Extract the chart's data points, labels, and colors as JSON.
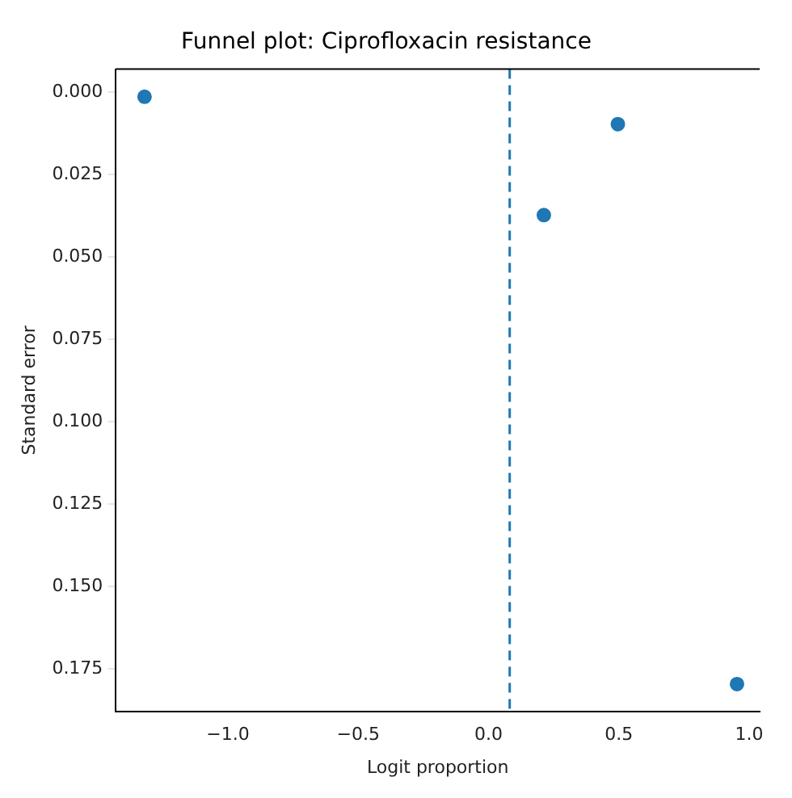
{
  "chart_data": {
    "type": "scatter",
    "title": "Funnel plot: Ciprofloxacin resistance",
    "xlabel": "Logit proportion",
    "ylabel": "Standard error",
    "series": [
      {
        "color": "#1f77b4",
        "x": [
          -1.32,
          0.496,
          0.212,
          0.953
        ],
        "values": [
          0.0014,
          0.0097,
          0.0373,
          0.1796
        ]
      }
    ],
    "xlim": [
      -1.43,
      1.04
    ],
    "xticks": [
      {
        "value": -1,
        "label": "−1.0"
      },
      {
        "value": -0.5,
        "label": "−0.5"
      },
      {
        "value": 0,
        "label": "0.0"
      },
      {
        "value": 0.5,
        "label": "0.5"
      },
      {
        "value": 1,
        "label": "1.0"
      }
    ],
    "ylim": [
      0.188,
      -0.007
    ],
    "yticks": [
      {
        "value": 0,
        "label": "0.000"
      },
      {
        "value": 0.025,
        "label": "0.025"
      },
      {
        "value": 0.05,
        "label": "0.050"
      },
      {
        "value": 0.075,
        "label": "0.075"
      },
      {
        "value": 0.1,
        "label": "0.100"
      },
      {
        "value": 0.125,
        "label": "0.125"
      },
      {
        "value": 0.15,
        "label": "0.150"
      },
      {
        "value": 0.175,
        "label": "0.175"
      }
    ],
    "ref_lines": [
      {
        "axis": "x",
        "value": 0.081,
        "color": "#1f77b4",
        "line_style": "dashed"
      }
    ],
    "grid": false,
    "legend": false,
    "marker": "circle"
  }
}
